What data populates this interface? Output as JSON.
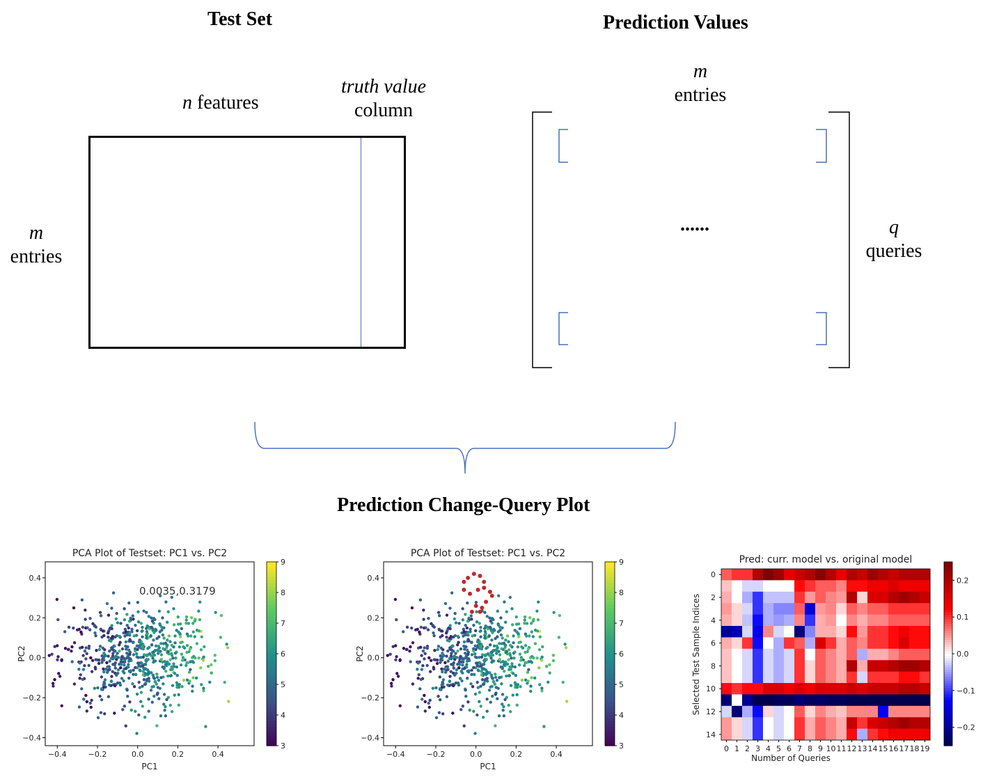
{
  "diagram": {
    "test_set": {
      "title": "Test Set",
      "features_var": "n",
      "features_word": "features",
      "truth_line1": "truth value",
      "truth_line2": "column",
      "rows_var": "m",
      "rows_word": "entries"
    },
    "prediction": {
      "title": "Prediction Values",
      "entries_var": "m",
      "entries_word": "entries",
      "dots": "......",
      "queries_var": "q",
      "queries_word": "queries"
    },
    "bottom_title": "Prediction Change-Query Plot",
    "colors": {
      "line_blue": "#4a6fc0",
      "box": "#000000"
    }
  },
  "chart_data": [
    {
      "type": "scatter",
      "title": "PCA Plot of Testset: PC1 vs. PC2",
      "xlabel": "PC1",
      "ylabel": "PC2",
      "xlim": [
        -0.46,
        0.58
      ],
      "ylim": [
        -0.44,
        0.48
      ],
      "xticks": [
        "-0.4",
        "-0.2",
        "0.0",
        "0.2",
        "0.4"
      ],
      "yticks": [
        "0.4",
        "0.2",
        "0.0",
        "-0.2",
        "-0.4"
      ],
      "colorbar": {
        "cmap": "viridis",
        "min": 3,
        "max": 9,
        "ticks": [
          "9",
          "8",
          "7",
          "6",
          "5",
          "4",
          "3"
        ]
      },
      "annotation": "0.0035,0.3179",
      "highlight": []
    },
    {
      "type": "scatter",
      "title": "PCA Plot of Testset: PC1 vs. PC2",
      "xlabel": "PC1",
      "ylabel": "PC2",
      "xlim": [
        -0.46,
        0.58
      ],
      "ylim": [
        -0.44,
        0.48
      ],
      "xticks": [
        "-0.4",
        "-0.2",
        "0.0",
        "0.2",
        "0.4"
      ],
      "yticks": [
        "0.4",
        "0.2",
        "0.0",
        "-0.2",
        "-0.4"
      ],
      "colorbar": {
        "cmap": "viridis",
        "min": 3,
        "max": 9,
        "ticks": [
          "9",
          "8",
          "7",
          "6",
          "5",
          "4",
          "3"
        ]
      },
      "annotation": "",
      "highlight": [
        [
          -0.06,
          0.38
        ],
        [
          -0.04,
          0.4
        ],
        [
          -0.01,
          0.42
        ],
        [
          0.02,
          0.41
        ],
        [
          0.04,
          0.38
        ],
        [
          0.07,
          0.33
        ],
        [
          0.08,
          0.31
        ],
        [
          -0.06,
          0.34
        ],
        [
          -0.03,
          0.32
        ],
        [
          0.01,
          0.34
        ],
        [
          0.04,
          0.35
        ],
        [
          0.05,
          0.28
        ],
        [
          0.03,
          0.25
        ],
        [
          0.0,
          0.26
        ],
        [
          -0.02,
          0.23
        ],
        [
          0.02,
          0.23
        ]
      ]
    },
    {
      "type": "heatmap",
      "title": "Pred: curr. model vs. original model",
      "xlabel": "Number of Queries",
      "ylabel": "Selected Test Sample Indices",
      "xticks": [
        "0",
        "1",
        "2",
        "3",
        "4",
        "5",
        "6",
        "7",
        "8",
        "9",
        "10",
        "11",
        "12",
        "13",
        "14",
        "15",
        "16",
        "17",
        "18",
        "19"
      ],
      "yticks": [
        "0",
        "2",
        "4",
        "6",
        "8",
        "10",
        "12",
        "14"
      ],
      "colorbar": {
        "cmap": "seismic",
        "min": -0.25,
        "max": 0.25,
        "ticks": [
          "0.2",
          "0.1",
          "0.0",
          "-0.1",
          "-0.2"
        ]
      },
      "values": [
        [
          0.08,
          0.1,
          0.1,
          0.2,
          0.25,
          0.22,
          0.15,
          0.18,
          0.2,
          0.24,
          0.2,
          0.15,
          0.2,
          0.18,
          0.22,
          0.2,
          0.18,
          0.2,
          0.2,
          0.2
        ],
        [
          0.03,
          0.0,
          -0.02,
          -0.02,
          0.0,
          0.0,
          0.0,
          0.12,
          0.1,
          0.08,
          0.08,
          0.06,
          0.12,
          0.12,
          0.14,
          0.14,
          0.16,
          0.14,
          0.14,
          0.14
        ],
        [
          0.04,
          0.0,
          -0.04,
          -0.1,
          -0.03,
          -0.03,
          -0.03,
          0.1,
          0.05,
          0.08,
          0.06,
          0.05,
          0.2,
          0.02,
          0.16,
          0.16,
          0.2,
          0.22,
          0.2,
          0.18
        ],
        [
          0.05,
          0.02,
          -0.02,
          -0.1,
          -0.04,
          -0.06,
          -0.06,
          0.08,
          -0.15,
          0.05,
          0.06,
          0.02,
          0.08,
          0.06,
          0.08,
          0.08,
          0.1,
          0.1,
          0.1,
          0.1
        ],
        [
          0.04,
          0.02,
          -0.03,
          -0.12,
          -0.04,
          -0.05,
          -0.04,
          0.06,
          -0.1,
          0.04,
          0.05,
          0.0,
          0.06,
          0.04,
          0.06,
          0.06,
          0.08,
          0.08,
          0.08,
          0.08
        ],
        [
          -0.2,
          -0.18,
          -0.02,
          -0.14,
          0.06,
          -0.02,
          0.0,
          -0.22,
          -0.06,
          0.04,
          0.04,
          0.02,
          0.12,
          0.05,
          0.1,
          0.1,
          0.12,
          0.14,
          0.12,
          0.12
        ],
        [
          0.04,
          0.02,
          0.1,
          -0.12,
          0.0,
          -0.04,
          0.1,
          0.08,
          -0.04,
          0.16,
          0.1,
          0.04,
          0.08,
          0.06,
          0.1,
          0.1,
          0.12,
          0.16,
          0.12,
          0.12
        ],
        [
          0.03,
          0.0,
          -0.02,
          -0.1,
          -0.02,
          -0.04,
          -0.02,
          0.1,
          0.0,
          0.08,
          0.06,
          0.04,
          0.08,
          -0.04,
          0.04,
          0.04,
          0.06,
          0.08,
          0.08,
          0.08
        ],
        [
          0.03,
          0.0,
          -0.02,
          -0.1,
          -0.02,
          -0.04,
          -0.02,
          0.1,
          0.02,
          0.08,
          0.06,
          0.04,
          0.2,
          0.04,
          0.18,
          0.18,
          0.2,
          0.22,
          0.22,
          0.2
        ],
        [
          0.03,
          0.0,
          -0.02,
          -0.1,
          -0.02,
          -0.04,
          -0.02,
          0.1,
          0.02,
          0.08,
          0.06,
          0.04,
          0.1,
          -0.02,
          0.1,
          0.1,
          0.1,
          0.12,
          0.12,
          0.1
        ],
        [
          0.12,
          0.1,
          0.12,
          0.12,
          0.16,
          0.16,
          0.14,
          0.16,
          0.14,
          0.16,
          0.16,
          0.16,
          0.18,
          0.16,
          0.18,
          0.18,
          0.18,
          0.2,
          0.2,
          0.18
        ],
        [
          -0.22,
          0.0,
          -0.2,
          -0.25,
          -0.25,
          -0.24,
          -0.24,
          -0.22,
          -0.24,
          -0.23,
          -0.24,
          -0.24,
          -0.26,
          -0.26,
          -0.26,
          -0.26,
          -0.26,
          -0.26,
          -0.26,
          -0.26
        ],
        [
          -0.02,
          -0.22,
          -0.04,
          -0.12,
          0.02,
          -0.02,
          0.0,
          0.08,
          0.02,
          0.06,
          0.04,
          0.03,
          0.06,
          0.06,
          0.06,
          -0.14,
          0.06,
          0.06,
          0.06,
          0.06
        ],
        [
          0.05,
          0.02,
          -0.02,
          -0.1,
          0.0,
          -0.02,
          0.0,
          0.1,
          0.04,
          0.08,
          0.06,
          0.04,
          0.18,
          0.1,
          0.16,
          0.18,
          0.2,
          0.22,
          0.2,
          0.2
        ],
        [
          0.05,
          0.02,
          -0.02,
          -0.1,
          0.0,
          -0.02,
          0.0,
          0.1,
          0.04,
          0.08,
          0.06,
          0.04,
          0.12,
          -0.04,
          0.1,
          0.12,
          0.14,
          0.14,
          0.14,
          0.14
        ]
      ]
    }
  ]
}
